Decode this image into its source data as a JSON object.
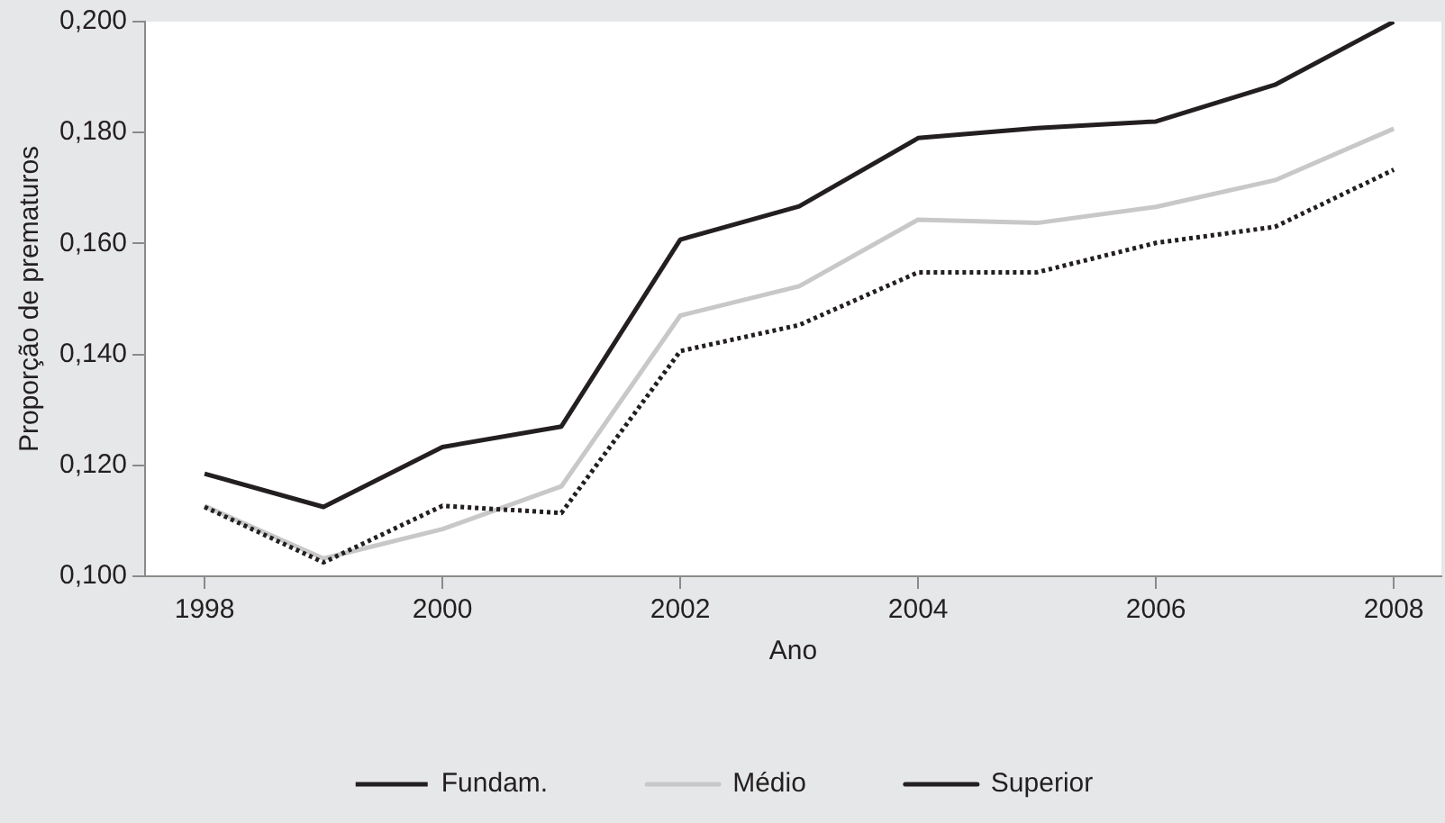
{
  "chart_data": {
    "type": "line",
    "xlabel": "Ano",
    "ylabel": "Proporção de prematuros",
    "x": [
      1998,
      1999,
      2000,
      2001,
      2002,
      2003,
      2004,
      2005,
      2006,
      2007,
      2008
    ],
    "xlim": [
      1997.5,
      2008.4
    ],
    "xticks": [
      1998,
      2000,
      2002,
      2004,
      2006,
      2008
    ],
    "ylim": [
      0.1,
      0.2
    ],
    "yticks": [
      {
        "value": 0.1,
        "label": "0,100"
      },
      {
        "value": 0.12,
        "label": "0,120"
      },
      {
        "value": 0.14,
        "label": "0,140"
      },
      {
        "value": 0.16,
        "label": "0,160"
      },
      {
        "value": 0.18,
        "label": "0,180"
      },
      {
        "value": 0.2,
        "label": "0,200"
      }
    ],
    "grid": false,
    "legend": "bottom",
    "marker": "none",
    "series": [
      {
        "name": "Fundam.",
        "color": "#231f20",
        "line_style": "dotted",
        "values": [
          0.1125,
          0.1025,
          0.1127,
          0.1114,
          0.1406,
          0.1453,
          0.1548,
          0.1548,
          0.1601,
          0.163,
          0.1733
        ]
      },
      {
        "name": "Médio",
        "color": "#c8c8c8",
        "line_style": "solid",
        "values": [
          0.1127,
          0.1032,
          0.1085,
          0.1162,
          0.147,
          0.1523,
          0.1643,
          0.1637,
          0.1666,
          0.1714,
          0.1807
        ]
      },
      {
        "name": "Superior",
        "color": "#231f20",
        "line_style": "solid",
        "values": [
          0.1185,
          0.1125,
          0.1233,
          0.127,
          0.1607,
          0.1667,
          0.179,
          0.1808,
          0.182,
          0.1886,
          0.2
        ]
      }
    ]
  }
}
